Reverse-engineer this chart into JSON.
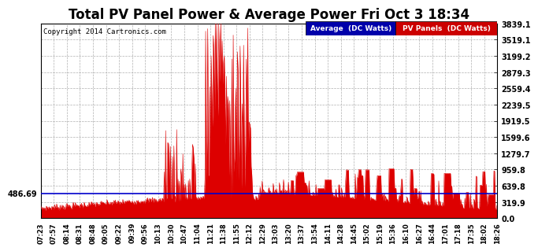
{
  "title": "Total PV Panel Power & Average Power Fri Oct 3 18:34",
  "copyright": "Copyright 2014 Cartronics.com",
  "legend_avg": "Average  (DC Watts)",
  "legend_pv": "PV Panels  (DC Watts)",
  "avg_value": 486.69,
  "y_max": 3839.1,
  "y_min": 0.0,
  "yticks": [
    0.0,
    319.9,
    639.8,
    959.8,
    1279.7,
    1599.6,
    1919.5,
    2239.5,
    2559.4,
    2879.3,
    3199.2,
    3519.1,
    3839.1
  ],
  "xtick_labels": [
    "07:23",
    "07:57",
    "08:14",
    "08:31",
    "08:48",
    "09:05",
    "09:22",
    "09:39",
    "09:56",
    "10:13",
    "10:30",
    "10:47",
    "11:04",
    "11:21",
    "11:38",
    "11:55",
    "12:12",
    "12:29",
    "13:03",
    "13:20",
    "13:37",
    "13:54",
    "14:11",
    "14:28",
    "14:45",
    "15:02",
    "15:19",
    "15:36",
    "16:10",
    "16:27",
    "16:44",
    "17:01",
    "17:18",
    "17:35",
    "18:02",
    "18:26"
  ],
  "bg_color": "#ffffff",
  "grid_color": "#b0b0b0",
  "pv_color": "#dd0000",
  "avg_line_color": "#0000cc",
  "title_color": "#000000",
  "title_fontsize": 12,
  "yaxis_fontsize": 7,
  "xaxis_fontsize": 6,
  "copyright_fontsize": 6.5
}
